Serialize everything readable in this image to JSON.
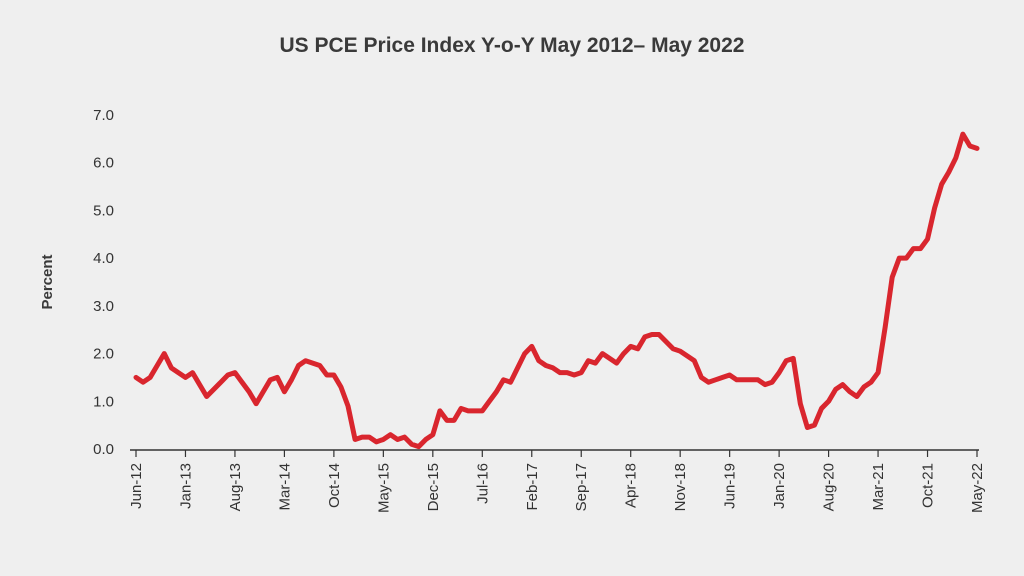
{
  "chart_data": {
    "type": "line",
    "title": "US PCE Price Index Y-o-Y May 2012– May 2022",
    "ylabel": "Percent",
    "color": "#d9262e",
    "categories": [
      "Jun-12",
      null,
      null,
      null,
      null,
      null,
      null,
      "Jan-13",
      null,
      null,
      null,
      null,
      null,
      null,
      "Aug-13",
      null,
      null,
      null,
      null,
      null,
      null,
      "Mar-14",
      null,
      null,
      null,
      null,
      null,
      null,
      "Oct-14",
      null,
      null,
      null,
      null,
      null,
      null,
      "May-15",
      null,
      null,
      null,
      null,
      null,
      null,
      "Dec-15",
      null,
      null,
      null,
      null,
      null,
      null,
      "Jul-16",
      null,
      null,
      null,
      null,
      null,
      null,
      "Feb-17",
      null,
      null,
      null,
      null,
      null,
      null,
      "Sep-17",
      null,
      null,
      null,
      null,
      null,
      null,
      "Apr-18",
      null,
      null,
      null,
      null,
      null,
      null,
      "Nov-18",
      null,
      null,
      null,
      null,
      null,
      null,
      "Jun-19",
      null,
      null,
      null,
      null,
      null,
      null,
      "Jan-20",
      null,
      null,
      null,
      null,
      null,
      null,
      "Aug-20",
      null,
      null,
      null,
      null,
      null,
      null,
      "Mar-21",
      null,
      null,
      null,
      null,
      null,
      null,
      "Oct-21",
      null,
      null,
      null,
      null,
      null,
      null,
      "May-22"
    ],
    "values": [
      1.5,
      1.4,
      1.5,
      1.75,
      2.0,
      1.7,
      1.6,
      1.5,
      1.6,
      1.35,
      1.1,
      1.25,
      1.4,
      1.55,
      1.6,
      1.4,
      1.2,
      0.95,
      1.2,
      1.45,
      1.5,
      1.2,
      1.45,
      1.75,
      1.85,
      1.8,
      1.75,
      1.55,
      1.55,
      1.3,
      0.9,
      0.2,
      0.25,
      0.25,
      0.15,
      0.2,
      0.3,
      0.2,
      0.25,
      0.1,
      0.05,
      0.2,
      0.3,
      0.8,
      0.6,
      0.6,
      0.85,
      0.8,
      0.8,
      0.8,
      1.0,
      1.2,
      1.45,
      1.4,
      1.7,
      2.0,
      2.15,
      1.85,
      1.75,
      1.7,
      1.6,
      1.6,
      1.55,
      1.6,
      1.85,
      1.8,
      2.0,
      1.9,
      1.8,
      2.0,
      2.15,
      2.1,
      2.35,
      2.4,
      2.4,
      2.25,
      2.1,
      2.05,
      1.95,
      1.85,
      1.5,
      1.4,
      1.45,
      1.5,
      1.55,
      1.45,
      1.45,
      1.45,
      1.45,
      1.35,
      1.4,
      1.6,
      1.85,
      1.9,
      0.95,
      0.45,
      0.5,
      0.85,
      1.0,
      1.25,
      1.35,
      1.2,
      1.1,
      1.3,
      1.4,
      1.6,
      2.55,
      3.6,
      4.0,
      4.0,
      4.2,
      4.2,
      4.4,
      5.05,
      5.55,
      5.8,
      6.1,
      6.6,
      6.35,
      6.3
    ],
    "ylim": [
      0,
      7
    ],
    "yticks": [
      {
        "value": 0,
        "label": "0.0"
      },
      {
        "value": 1,
        "label": "1.0"
      },
      {
        "value": 2,
        "label": "2.0"
      },
      {
        "value": 3,
        "label": "3.0"
      },
      {
        "value": 4,
        "label": "4.0"
      },
      {
        "value": 5,
        "label": "5.0"
      },
      {
        "value": 6,
        "label": "6.0"
      },
      {
        "value": 7,
        "label": "7.0"
      }
    ]
  }
}
